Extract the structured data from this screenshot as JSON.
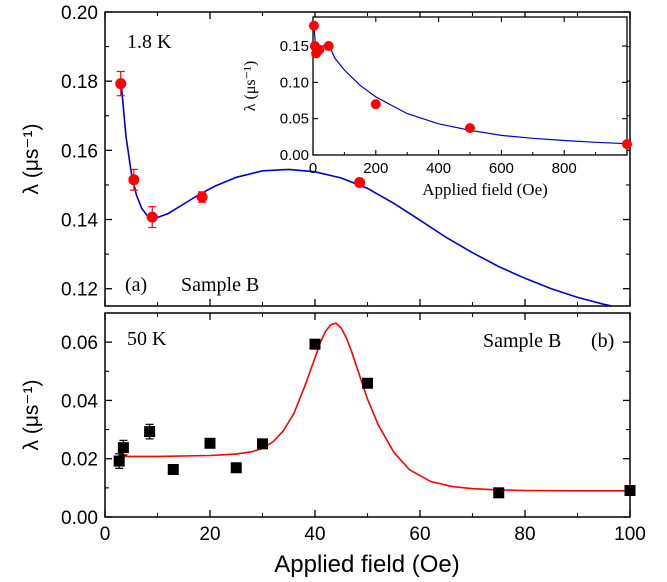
{
  "figure": {
    "xlabel": "Applied field (Oe)",
    "colors": {
      "axis": "#000000",
      "blue": "#0000cc",
      "red": "#ff0000",
      "black_marker": "#000000"
    }
  },
  "chart_data": [
    {
      "id": "panel-a",
      "type": "scatter",
      "panel_label": "(a)",
      "sample_label": "Sample B",
      "temperature_label": "1.8 K",
      "xlabel": "",
      "ylabel": "λ (μs⁻¹)",
      "xlim": [
        0,
        100
      ],
      "ylim": [
        0.115,
        0.2
      ],
      "xticks": [
        0,
        20,
        40,
        60,
        80,
        100
      ],
      "yticks": [
        0.12,
        0.14,
        0.16,
        0.18,
        0.2
      ],
      "ytick_labels": [
        "0.12",
        "0.14",
        "0.16",
        "0.18",
        "0.20"
      ],
      "marker": "circle",
      "marker_color": "#ff0000",
      "fit_color": "#0000cc",
      "series": [
        {
          "x": [
            3,
            5.5,
            9,
            18.5,
            48.5
          ],
          "y": [
            0.1793,
            0.1515,
            0.1407,
            0.1465,
            0.1507
          ],
          "yerr": [
            0.0035,
            0.003,
            0.003,
            0.0015,
            0.001
          ]
        }
      ],
      "fit": {
        "x": [
          3,
          4,
          5,
          6,
          7,
          8,
          9,
          10,
          12,
          15,
          18,
          21,
          25,
          30,
          35,
          40,
          45,
          50,
          55,
          60,
          65,
          70,
          75,
          80,
          85,
          90,
          95,
          100
        ],
        "y": [
          0.1805,
          0.164,
          0.1535,
          0.147,
          0.1432,
          0.1412,
          0.1405,
          0.1406,
          0.1417,
          0.1445,
          0.1473,
          0.1497,
          0.1522,
          0.1541,
          0.1545,
          0.1538,
          0.152,
          0.149,
          0.1447,
          0.1398,
          0.1348,
          0.1304,
          0.1264,
          0.123,
          0.12,
          0.1175,
          0.1155,
          0.1139
        ]
      },
      "inset": {
        "type": "scatter",
        "xlabel": "Applied field (Oe)",
        "ylabel": "λ (μs⁻¹)",
        "xlim": [
          0,
          1000
        ],
        "ylim": [
          0,
          0.19
        ],
        "xticks": [
          0,
          200,
          400,
          600,
          800
        ],
        "yticks": [
          0,
          0.05,
          0.1,
          0.15
        ],
        "ytick_labels": [
          "0.00",
          "0.05",
          "0.10",
          "0.15"
        ],
        "series": [
          {
            "x": [
              3,
              6,
              10,
              20,
              50,
              200,
              500,
              1000
            ],
            "y": [
              0.178,
              0.15,
              0.14,
              0.145,
              0.15,
              0.07,
              0.037,
              0.015
            ]
          }
        ],
        "fit": {
          "x": [
            3,
            10,
            20,
            35,
            50,
            70,
            100,
            150,
            200,
            300,
            400,
            500,
            600,
            700,
            800,
            900,
            1000
          ],
          "y": [
            0.178,
            0.142,
            0.146,
            0.151,
            0.152,
            0.133,
            0.117,
            0.096,
            0.08,
            0.057,
            0.043,
            0.034,
            0.027,
            0.023,
            0.02,
            0.0175,
            0.0155
          ]
        }
      }
    },
    {
      "id": "panel-b",
      "type": "scatter",
      "panel_label": "(b)",
      "sample_label": "Sample B",
      "temperature_label": "50 K",
      "xlabel": "Applied field (Oe)",
      "ylabel": "λ (μs⁻¹)",
      "xlim": [
        0,
        100
      ],
      "ylim": [
        0,
        0.07
      ],
      "xticks": [
        0,
        20,
        40,
        60,
        80,
        100
      ],
      "yticks": [
        0,
        0.02,
        0.04,
        0.06
      ],
      "ytick_labels": [
        "0.00",
        "0.02",
        "0.04",
        "0.06"
      ],
      "marker": "square",
      "marker_color": "#000000",
      "fit_color": "#ff0000",
      "series": [
        {
          "x": [
            2.7,
            3.5,
            8.5,
            13,
            20,
            25,
            30,
            40,
            50,
            75,
            100
          ],
          "y": [
            0.0192,
            0.0238,
            0.0293,
            0.0163,
            0.0253,
            0.0169,
            0.0251,
            0.0593,
            0.0459,
            0.0083,
            0.0091
          ],
          "yerr": [
            0.0025,
            0.0025,
            0.0025,
            0.0012,
            0.0012,
            0.0012,
            0.001,
            0.001,
            0.001,
            0.0008,
            0.0008
          ]
        }
      ],
      "fit": {
        "x": [
          3,
          10,
          20,
          25,
          28,
          30,
          32,
          34,
          36,
          38,
          40,
          41,
          42,
          43,
          44,
          45,
          46,
          47,
          48,
          50,
          52,
          55,
          58,
          62,
          66,
          70,
          75,
          80,
          90,
          100
        ],
        "y": [
          0.0208,
          0.0208,
          0.0211,
          0.0216,
          0.0224,
          0.0235,
          0.0258,
          0.0296,
          0.0356,
          0.0446,
          0.0546,
          0.0598,
          0.0637,
          0.066,
          0.0665,
          0.0648,
          0.0614,
          0.0566,
          0.0512,
          0.0405,
          0.0318,
          0.0222,
          0.0162,
          0.0122,
          0.0105,
          0.0097,
          0.0093,
          0.0091,
          0.009,
          0.009
        ]
      }
    }
  ]
}
